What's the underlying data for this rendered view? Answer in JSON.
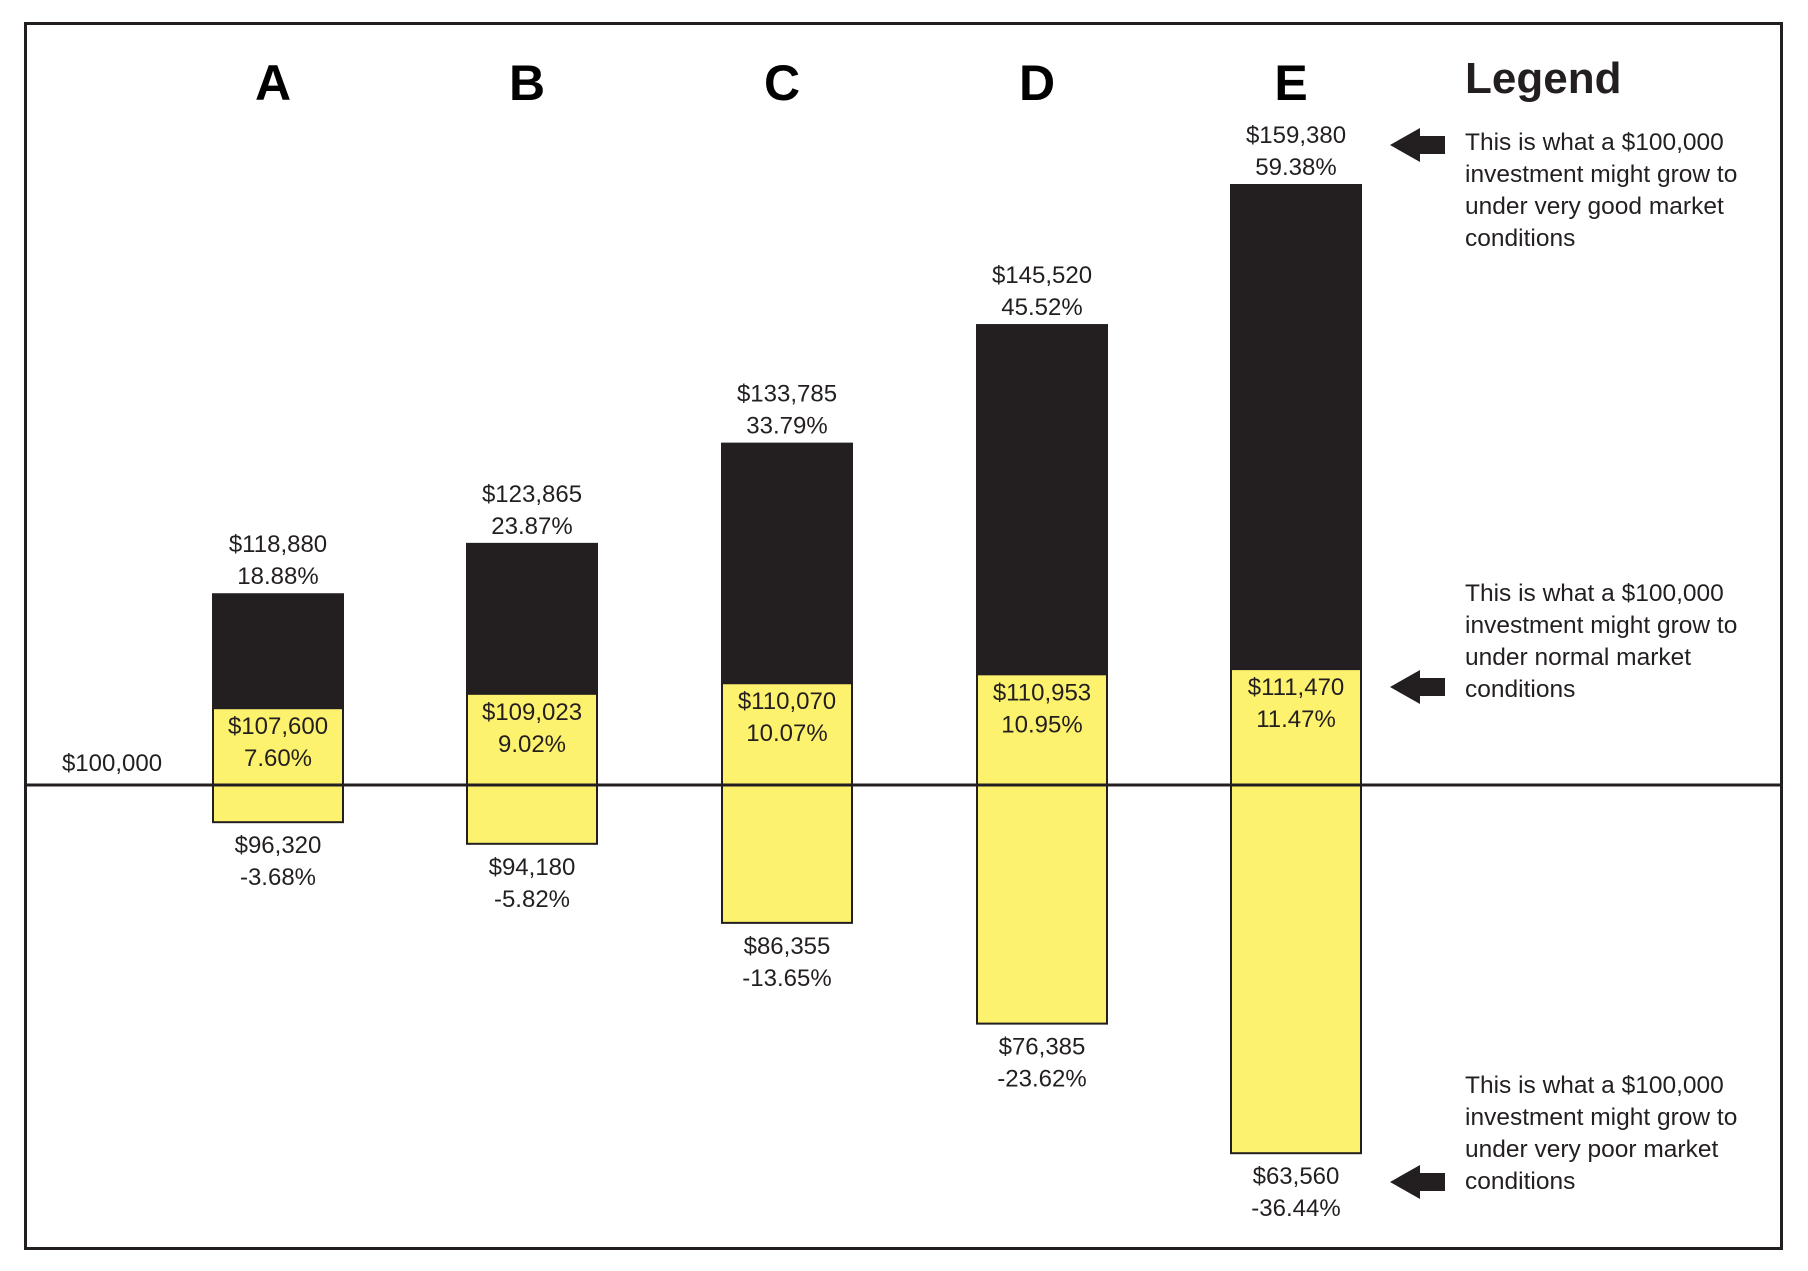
{
  "colors": {
    "frame": "#231f20",
    "upper_bar": "#231f20",
    "lower_bar": "#fdf26d",
    "text": "#231f20",
    "background": "#ffffff"
  },
  "chart_data": {
    "type": "bar",
    "baseline": {
      "value": 100000,
      "label": "$100,000"
    },
    "categories": [
      "A",
      "B",
      "C",
      "D",
      "E"
    ],
    "series": [
      {
        "name": "very good market conditions",
        "values": [
          118880,
          123865,
          133785,
          145520,
          159380
        ],
        "labels": [
          "$118,880",
          "$123,865",
          "$133,785",
          "$145,520",
          "$159,380"
        ],
        "pct": [
          "18.88%",
          "23.87%",
          "33.79%",
          "45.52%",
          "59.38%"
        ]
      },
      {
        "name": "normal market conditions",
        "values": [
          107600,
          109023,
          110070,
          110953,
          111470
        ],
        "labels": [
          "$107,600",
          "$109,023",
          "$110,070",
          "$110,953",
          "$111,470"
        ],
        "pct": [
          "7.60%",
          "9.02%",
          "10.07%",
          "10.95%",
          "11.47%"
        ]
      },
      {
        "name": "very poor market conditions",
        "values": [
          96320,
          94180,
          86355,
          76385,
          63560
        ],
        "labels": [
          "$96,320",
          "$94,180",
          "$86,355",
          "$76,385",
          "$63,560"
        ],
        "pct": [
          "-3.68%",
          "-5.82%",
          "-13.65%",
          "-23.62%",
          "-36.44%"
        ]
      }
    ],
    "legend": {
      "title": "Legend",
      "entries": [
        "This is what a $100,000 investment might grow to under very good market conditions",
        "This is what a $100,000 investment might grow to under normal market conditions",
        "This is what a $100,000 investment might grow to under very poor market conditions"
      ]
    }
  }
}
